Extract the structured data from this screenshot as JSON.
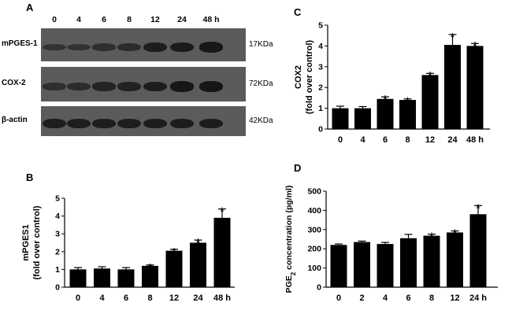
{
  "panels": {
    "a_letter": "A",
    "b_letter": "B",
    "c_letter": "C",
    "d_letter": "D"
  },
  "blot": {
    "lanes": [
      "0",
      "4",
      "6",
      "8",
      "12",
      "24",
      "48 h"
    ],
    "rows": [
      {
        "label": "mPGES-1",
        "kda": "17KDa",
        "intensities": [
          0.35,
          0.35,
          0.4,
          0.5,
          0.8,
          0.85,
          0.9
        ]
      },
      {
        "label": "COX-2",
        "kda": "72KDa",
        "intensities": [
          0.45,
          0.5,
          0.65,
          0.7,
          0.8,
          0.95,
          0.95
        ]
      },
      {
        "label": "β-actin",
        "kda": "42KDa",
        "intensities": [
          0.8,
          0.8,
          0.8,
          0.8,
          0.8,
          0.8,
          0.8
        ]
      }
    ]
  },
  "chart_data": [
    {
      "id": "B",
      "type": "bar",
      "ylabel_line1": "mPGES1",
      "ylabel_line2": "(fold over control)",
      "categories": [
        "0",
        "4",
        "6",
        "8",
        "12",
        "24",
        "48 h"
      ],
      "values": [
        1.0,
        1.05,
        1.0,
        1.2,
        2.05,
        2.5,
        3.9
      ],
      "errors": [
        0.1,
        0.1,
        0.1,
        0.05,
        0.08,
        0.15,
        0.5
      ],
      "significant": [
        false,
        false,
        false,
        true,
        true,
        true,
        true
      ],
      "ylim": [
        0,
        5
      ],
      "yticks": [
        0,
        1,
        2,
        3,
        4,
        5
      ]
    },
    {
      "id": "C",
      "type": "bar",
      "ylabel_line1": "COX2",
      "ylabel_line2": "(fold over control)",
      "categories": [
        "0",
        "4",
        "6",
        "8",
        "12",
        "24",
        "48 h"
      ],
      "values": [
        1.0,
        1.0,
        1.45,
        1.4,
        2.6,
        4.05,
        4.0
      ],
      "errors": [
        0.1,
        0.08,
        0.1,
        0.05,
        0.08,
        0.5,
        0.12
      ],
      "significant": [
        false,
        false,
        true,
        true,
        true,
        true,
        true
      ],
      "ylim": [
        0,
        5
      ],
      "yticks": [
        0,
        1,
        2,
        3,
        4,
        5
      ]
    },
    {
      "id": "D",
      "type": "bar",
      "ylabel_main": "PGE",
      "ylabel_sub": "2",
      "ylabel_rest": " concentration (pg/ml)",
      "categories": [
        "0",
        "2",
        "4",
        "6",
        "8",
        "12",
        "24 h"
      ],
      "values": [
        220,
        235,
        225,
        255,
        268,
        285,
        380
      ],
      "errors": [
        5,
        5,
        8,
        20,
        8,
        8,
        45
      ],
      "significant": [
        false,
        false,
        false,
        false,
        true,
        true,
        true
      ],
      "ylim": [
        0,
        500
      ],
      "yticks": [
        0,
        100,
        200,
        300,
        400,
        500
      ]
    }
  ],
  "sig_marker": "*"
}
